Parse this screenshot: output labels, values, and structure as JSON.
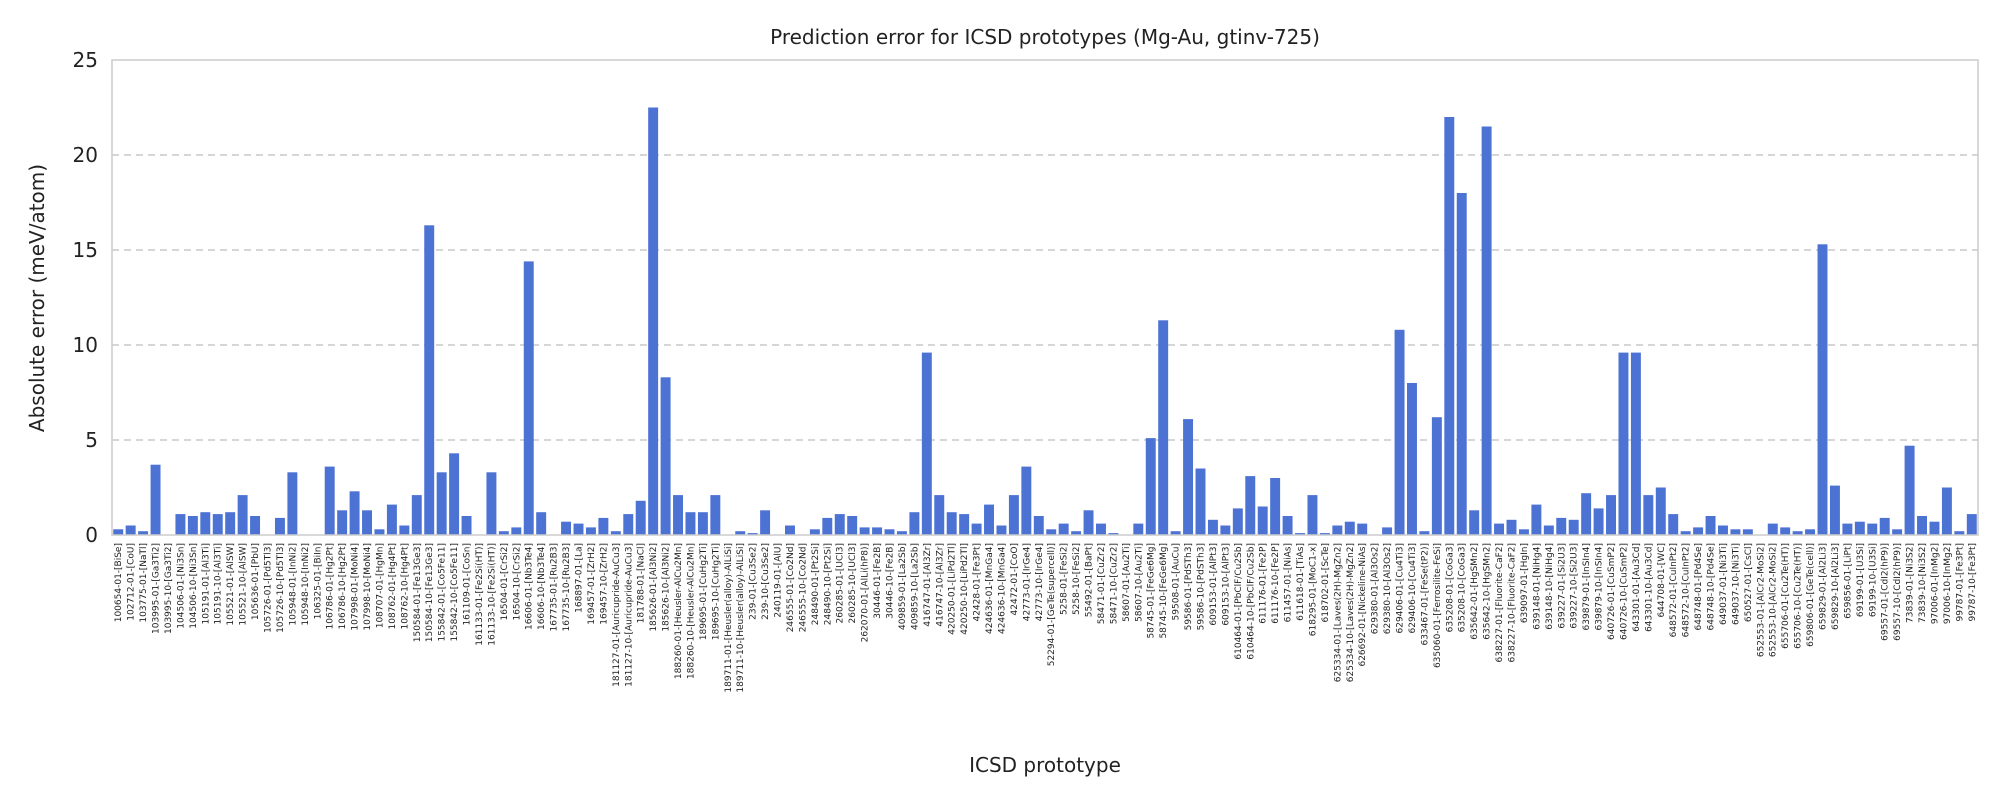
{
  "chart_data": {
    "type": "bar",
    "title": "Prediction error for ICSD prototypes (Mg-Au, gtinv-725)",
    "xlabel": "ICSD prototype",
    "ylabel": "Absolute error (meV/atom)",
    "ylim": [
      0,
      25
    ],
    "yticks": [
      0,
      5,
      10,
      15,
      20,
      25
    ],
    "grid": "horizontal dashed",
    "bar_color": "#4c72d4",
    "categories": [
      "100654-01-[BiSe]",
      "102712-01-[CoU]",
      "103775-01-[NaTl]",
      "103995-01-[Ga3Ti2]",
      "103995-10-[Ga3Ti2]",
      "104506-01-[Ni3Sn]",
      "104506-10-[Ni3Sn]",
      "105191-01-[Al3Ti]",
      "105191-10-[Al3Ti]",
      "105521-01-[AlSW]",
      "105521-10-[AlSW]",
      "105636-01-[PbU]",
      "105726-01-[Pd5Tl3]",
      "105726-10-[Pd5Tl3]",
      "105948-01-[InNi2]",
      "105948-10-[InNi2]",
      "106325-01-[BiIn]",
      "106786-01-[Hg2Pt]",
      "106786-10-[Hg2Pt]",
      "107998-01-[MoNi4]",
      "107998-10-[MoNi4]",
      "108707-01-[HgMn]",
      "108762-01-[Hg4Pt]",
      "108762-10-[Hg4Pt]",
      "150584-01-[Fe13Ge3]",
      "150584-10-[Fe13Ge3]",
      "155842-01-[Co5Fe11]",
      "155842-10-[Co5Fe11]",
      "161109-01-[CoSn]",
      "161133-01-[Fe2Si(HT)]",
      "161133-10-[Fe2Si(HT)]",
      "16504-01-[CrSi2]",
      "16504-10-[CrSi2]",
      "16606-01-[Nb3Te4]",
      "16606-10-[Nb3Te4]",
      "167735-01-[Ru2B3]",
      "167735-10-[Ru2B3]",
      "168897-01-[La]",
      "169457-01-[ZrH2]",
      "169457-10-[ZrH2]",
      "181127-01-[Auricupride-AuCu3]",
      "181127-10-[Auricupride-AuCu3]",
      "181788-01-[NaCl]",
      "185626-01-[Al3Ni2]",
      "185626-10-[Al3Ni2]",
      "188260-01-[Heusler-AlCu2Mn]",
      "188260-10-[Heusler-AlCu2Mn]",
      "189695-01-[CuHg2Ti]",
      "189695-10-[CuHg2Ti]",
      "189711-01-[Heusler(alloy)-AlLiSi]",
      "189711-10-[Heusler(alloy)-AlLiSi]",
      "239-01-[Cu3Se2]",
      "239-10-[Cu3Se2]",
      "240119-01-[AlU]",
      "246555-01-[Co2Nd]",
      "246555-10-[Co2Nd]",
      "248490-01-[Pt2Si]",
      "248490-10-[Pt2Si]",
      "260285-01-[UCl3]",
      "260285-10-[UCl3]",
      "262070-01-[AlLi(hP8)]",
      "30446-01-[Fe2B]",
      "30446-10-[Fe2B]",
      "409859-01-[La2Sb]",
      "409859-10-[La2Sb]",
      "416747-01-[Al3Zr]",
      "416747-10-[Al3Zr]",
      "420250-01-[LiPd2Tl]",
      "420250-10-[LiPd2Tl]",
      "42428-01-[Fe3Pt]",
      "424636-01-[MnGa4]",
      "424636-10-[MnGa4]",
      "42472-01-[CoO]",
      "42773-01-[IrGe4]",
      "42773-10-[IrGe4]",
      "52294-01-[GeTe(supercell)]",
      "5258-01-[FeSi2]",
      "5258-10-[FeSi2]",
      "55492-01-[BaPt]",
      "58471-01-[CuZr2]",
      "58471-10-[CuZr2]",
      "58607-01-[Au2Ti]",
      "58607-10-[Au2Ti]",
      "58745-01-[FeGe6Mg]",
      "58745-10-[FeGe6Mg]",
      "59508-01-[AuCu]",
      "59586-01-[PdSTh3]",
      "59586-10-[PdSTh3]",
      "609153-01-[AlPt3]",
      "609153-10-[AlPt3]",
      "610464-01-[PbClF/Cu2Sb]",
      "610464-10-[PbClF/Cu2Sb]",
      "611176-01-[Fe2P]",
      "611176-10-[Fe2P]",
      "611457-01-[NiAs]",
      "611618-01-[TiAs]",
      "618295-01-[MoC1-x]",
      "618702-01-[ScTe]",
      "625334-01-[Laves(2H)-MgZn2]",
      "625334-10-[Laves(2H)-MgZn2]",
      "626692-01-[Nickeline-NiAs]",
      "629380-01-[Al3Os2]",
      "629380-10-[Al3Os2]",
      "629406-01-[Cu4Ti3]",
      "629406-10-[Cu4Ti3]",
      "633467-01-[FeSe(tP2)]",
      "635060-01-[Ferrosilite-FeSi]",
      "635208-01-[CoGa3]",
      "635208-10-[CoGa3]",
      "635642-01-[HgSMn2]",
      "635642-10-[HgSMn2]",
      "638227-01-[Fluorite-CaF2]",
      "638227-10-[Fluorite-CaF2]",
      "639097-01-[HgIn]",
      "639148-01-[NiHg4]",
      "639148-10-[NiHg4]",
      "639227-01-[Si2U3]",
      "639227-10-[Si2U3]",
      "639879-01-[InSIn4]",
      "639879-10-[InSIn4]",
      "640726-01-[CuSmP2]",
      "640726-10-[CuSmP2]",
      "643301-01-[Au3Cd]",
      "643301-10-[Au3Cd]",
      "644708-01-[WC]",
      "648572-01-[CuInPt2]",
      "648572-10-[CuInPt2]",
      "648748-01-[Pd4Se]",
      "648748-10-[Pd4Se]",
      "649037-01-[Ni3Ti]",
      "649037-10-[Ni3Ti]",
      "650527-01-[CsCl]",
      "652553-01-[AlCr2-MoSi2]",
      "652553-10-[AlCr2-MoSi2]",
      "655706-01-[Cu2Te(HT)]",
      "655706-10-[Cu2Te(HT)]",
      "659806-01-[GeTe(cell)]",
      "659829-01-[Al2Li3]",
      "659829-10-[Al2Li3]",
      "659856-01-[LiPt]",
      "69199-01-[U3Si]",
      "69199-10-[U3Si]",
      "69557-01-[CdI2(hP9)]",
      "69557-10-[CdI2(hP9)]",
      "73839-01-[Ni3S2]",
      "73839-10-[Ni3S2]",
      "97006-01-[InMg2]",
      "97006-10-[InMg2]",
      "99787-01-[Fe3Pt]",
      "99787-10-[Fe3Pt]"
    ],
    "values": [
      0.3,
      0.5,
      0.2,
      3.7,
      0.0,
      1.1,
      1.0,
      1.2,
      1.1,
      1.2,
      2.1,
      1.0,
      0.0,
      0.9,
      3.3,
      0.0,
      0.0,
      3.6,
      1.3,
      2.3,
      1.3,
      0.3,
      1.6,
      0.5,
      2.1,
      16.3,
      3.3,
      4.3,
      1.0,
      0.0,
      3.3,
      0.2,
      0.4,
      14.4,
      1.2,
      0.0,
      0.7,
      0.6,
      0.4,
      0.9,
      0.2,
      1.1,
      1.8,
      22.5,
      8.3,
      2.1,
      1.2,
      1.2,
      2.1,
      0.0,
      0.2,
      0.1,
      1.3,
      0.0,
      0.5,
      0.0,
      0.3,
      0.9,
      1.1,
      1.0,
      0.4,
      0.4,
      0.3,
      0.2,
      1.2,
      9.6,
      2.1,
      1.2,
      1.1,
      0.6,
      1.6,
      0.5,
      2.1,
      3.6,
      1.0,
      0.3,
      0.6,
      0.2,
      1.3,
      0.6,
      0.1,
      0.0,
      0.6,
      5.1,
      11.3,
      0.2,
      6.1,
      3.5,
      0.8,
      0.5,
      1.4,
      3.1,
      1.5,
      3.0,
      1.0,
      0.1,
      2.1,
      0.1,
      0.5,
      0.7,
      0.6,
      0.0,
      0.4,
      10.8,
      8.0,
      0.2,
      6.2,
      22.0,
      18.0,
      1.3,
      21.5,
      0.6,
      0.8,
      0.3,
      1.6,
      0.5,
      0.9,
      0.8,
      2.2,
      1.4,
      2.1,
      9.6,
      9.6,
      2.1,
      2.5,
      1.1,
      0.2,
      0.4,
      1.0,
      0.5,
      0.3,
      0.3,
      0.0,
      0.6,
      0.4,
      0.2,
      0.3,
      15.3,
      2.6,
      0.6,
      0.7,
      0.6,
      0.9,
      0.3,
      4.7,
      1.0,
      0.7,
      2.5,
      0.2,
      1.1
    ]
  }
}
